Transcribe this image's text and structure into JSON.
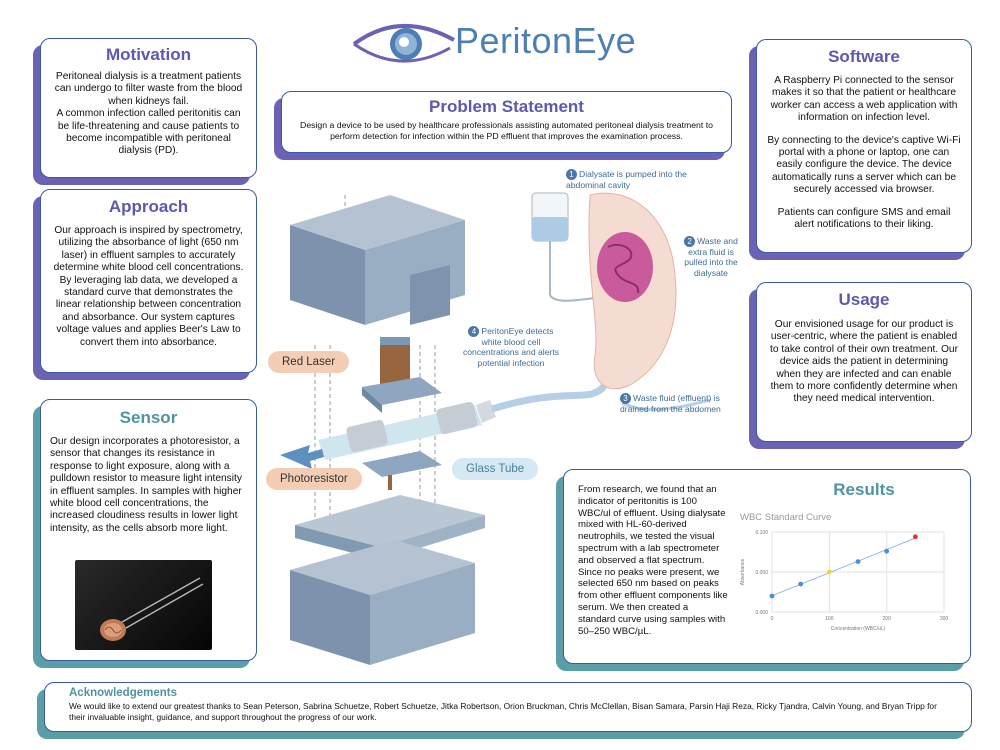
{
  "logo": {
    "title": "PeritonEye"
  },
  "motivation": {
    "title": "Motivation",
    "p1": "Peritoneal dialysis is a treatment patients can undergo to filter waste from the blood when kidneys fail.",
    "p2": "A common infection called peritonitis can be life-threatening and cause patients to become incompatible with peritoneal dialysis (PD)."
  },
  "problem": {
    "title": "Problem Statement",
    "text": "Design a device to be used by healthcare professionals assisting automated peritoneal dialysis treatment to perform detection for infection within the PD effluent that improves the examination process."
  },
  "software": {
    "title": "Software",
    "p1": "A Raspberry Pi connected to the sensor makes it so that the patient or healthcare worker can access a web application with information on infection level.",
    "p2": "By connecting to the device's captive Wi-Fi portal with a phone or laptop, one can easily configure the device. The device automatically runs a server which can be securely accessed via browser.",
    "p3": "Patients can configure SMS and email alert notifications to their liking."
  },
  "approach": {
    "title": "Approach",
    "text": "Our approach is inspired by spectrometry, utilizing the absorbance of light (650 nm laser) in effluent samples to accurately determine white blood cell concentrations. By leveraging lab data, we developed a standard curve that demonstrates the linear relationship between concentration and absorbance. Our system captures voltage values and applies Beer's Law to convert them into absorbance."
  },
  "usage": {
    "title": "Usage",
    "text": "Our envisioned usage for our product is user-centric, where the patient is enabled to take control of their own treatment. Our device aids the patient in determining when they are infected and can enable them to more confidently determine when they need medical intervention."
  },
  "sensor": {
    "title": "Sensor",
    "text": "Our design incorporates a photoresistor, a sensor that changes its resistance in response to light exposure, along with a pulldown resistor to measure light intensity in effluent samples. In samples with higher white blood cell concentrations, the increased cloudiness results in lower light intensity, as the cells absorb more light."
  },
  "results": {
    "title": "Results",
    "text": "From research, we found that an indicator of peritonitis is 100 WBC/ul of effluent. Using dialysate mixed with HL-60-derived neutrophils, we tested the visual spectrum with a lab spectrometer and observed a flat spectrum. Since no peaks were present, we selected 650 nm based on peaks from other effluent components like serum. We then created a standard curve using samples with 50–250 WBC/µL."
  },
  "acknowledgements": {
    "title": "Acknowledgements",
    "text": "We would like to extend our greatest thanks to Sean Peterson, Sabrina Schuetze, Robert Schuetze, Jitka Robertson, Orion Bruckman, Chris McClellan, Bisan Samara, Parsin Haji Reza, Ricky Tjandra, Calvin Young, and Bryan Tripp for their invaluable insight, guidance, and support throughout the progress of our work."
  },
  "diagram": {
    "red_laser": "Red Laser",
    "photoresistor": "Photoresistor",
    "glass_tube": "Glass Tube",
    "step1_num": "1",
    "step1": "Dialysate is pumped into the abdominal cavity",
    "step2_num": "2",
    "step2": "Waste and extra fluid is pulled into the dialysate",
    "step3_num": "3",
    "step3": "Waste fluid (effluent) is drained from the abdomen",
    "step4_num": "4",
    "step4": "PeritonEye detects white blood cell concentrations and alerts potential infection"
  },
  "chart_data": {
    "type": "scatter",
    "title": "WBC Standard Curve",
    "xlabel": "Concentration (WBC/uL)",
    "ylabel": "Absorbance",
    "xlim": [
      0,
      300
    ],
    "ylim": [
      0.0,
      0.1
    ],
    "xticks": [
      "0",
      "100",
      "200",
      "300"
    ],
    "yticks": [
      "0.100",
      "0.050",
      "0.000"
    ],
    "x": [
      0,
      50,
      100,
      150,
      200,
      250
    ],
    "y": [
      0.02,
      0.035,
      0.05,
      0.063,
      0.076,
      0.094
    ],
    "point_colors": [
      "#4a8fdc",
      "#4a8fdc",
      "#f2cf3a",
      "#4a8fdc",
      "#4a8fdc",
      "#d93a2b"
    ],
    "trendline": true
  }
}
